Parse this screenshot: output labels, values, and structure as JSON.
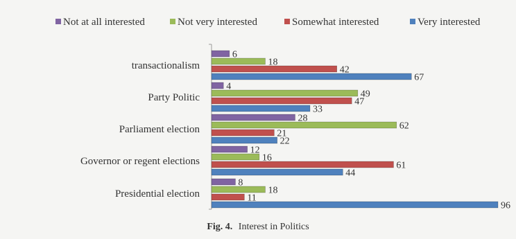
{
  "chart_data": {
    "type": "bar",
    "orientation": "horizontal",
    "categories": [
      "transactionalism",
      "Party Politic",
      "Parliament election",
      "Governor or regent elections",
      "Presidential election"
    ],
    "series": [
      {
        "name": "Not at all interested",
        "color": "#8064a2",
        "values": [
          6,
          4,
          28,
          12,
          8
        ]
      },
      {
        "name": "Not very interested",
        "color": "#9bbb59",
        "values": [
          18,
          49,
          62,
          16,
          18
        ]
      },
      {
        "name": "Somewhat interested",
        "color": "#c0504d",
        "values": [
          42,
          47,
          21,
          61,
          11
        ]
      },
      {
        "name": "Very interested",
        "color": "#4f81bd",
        "values": [
          67,
          33,
          22,
          44,
          96
        ]
      }
    ],
    "xlim": [
      0,
      100
    ],
    "legend_position": "top",
    "grid": false
  },
  "caption": {
    "label": "Fig. 4.",
    "text": "Interest in Politics"
  }
}
